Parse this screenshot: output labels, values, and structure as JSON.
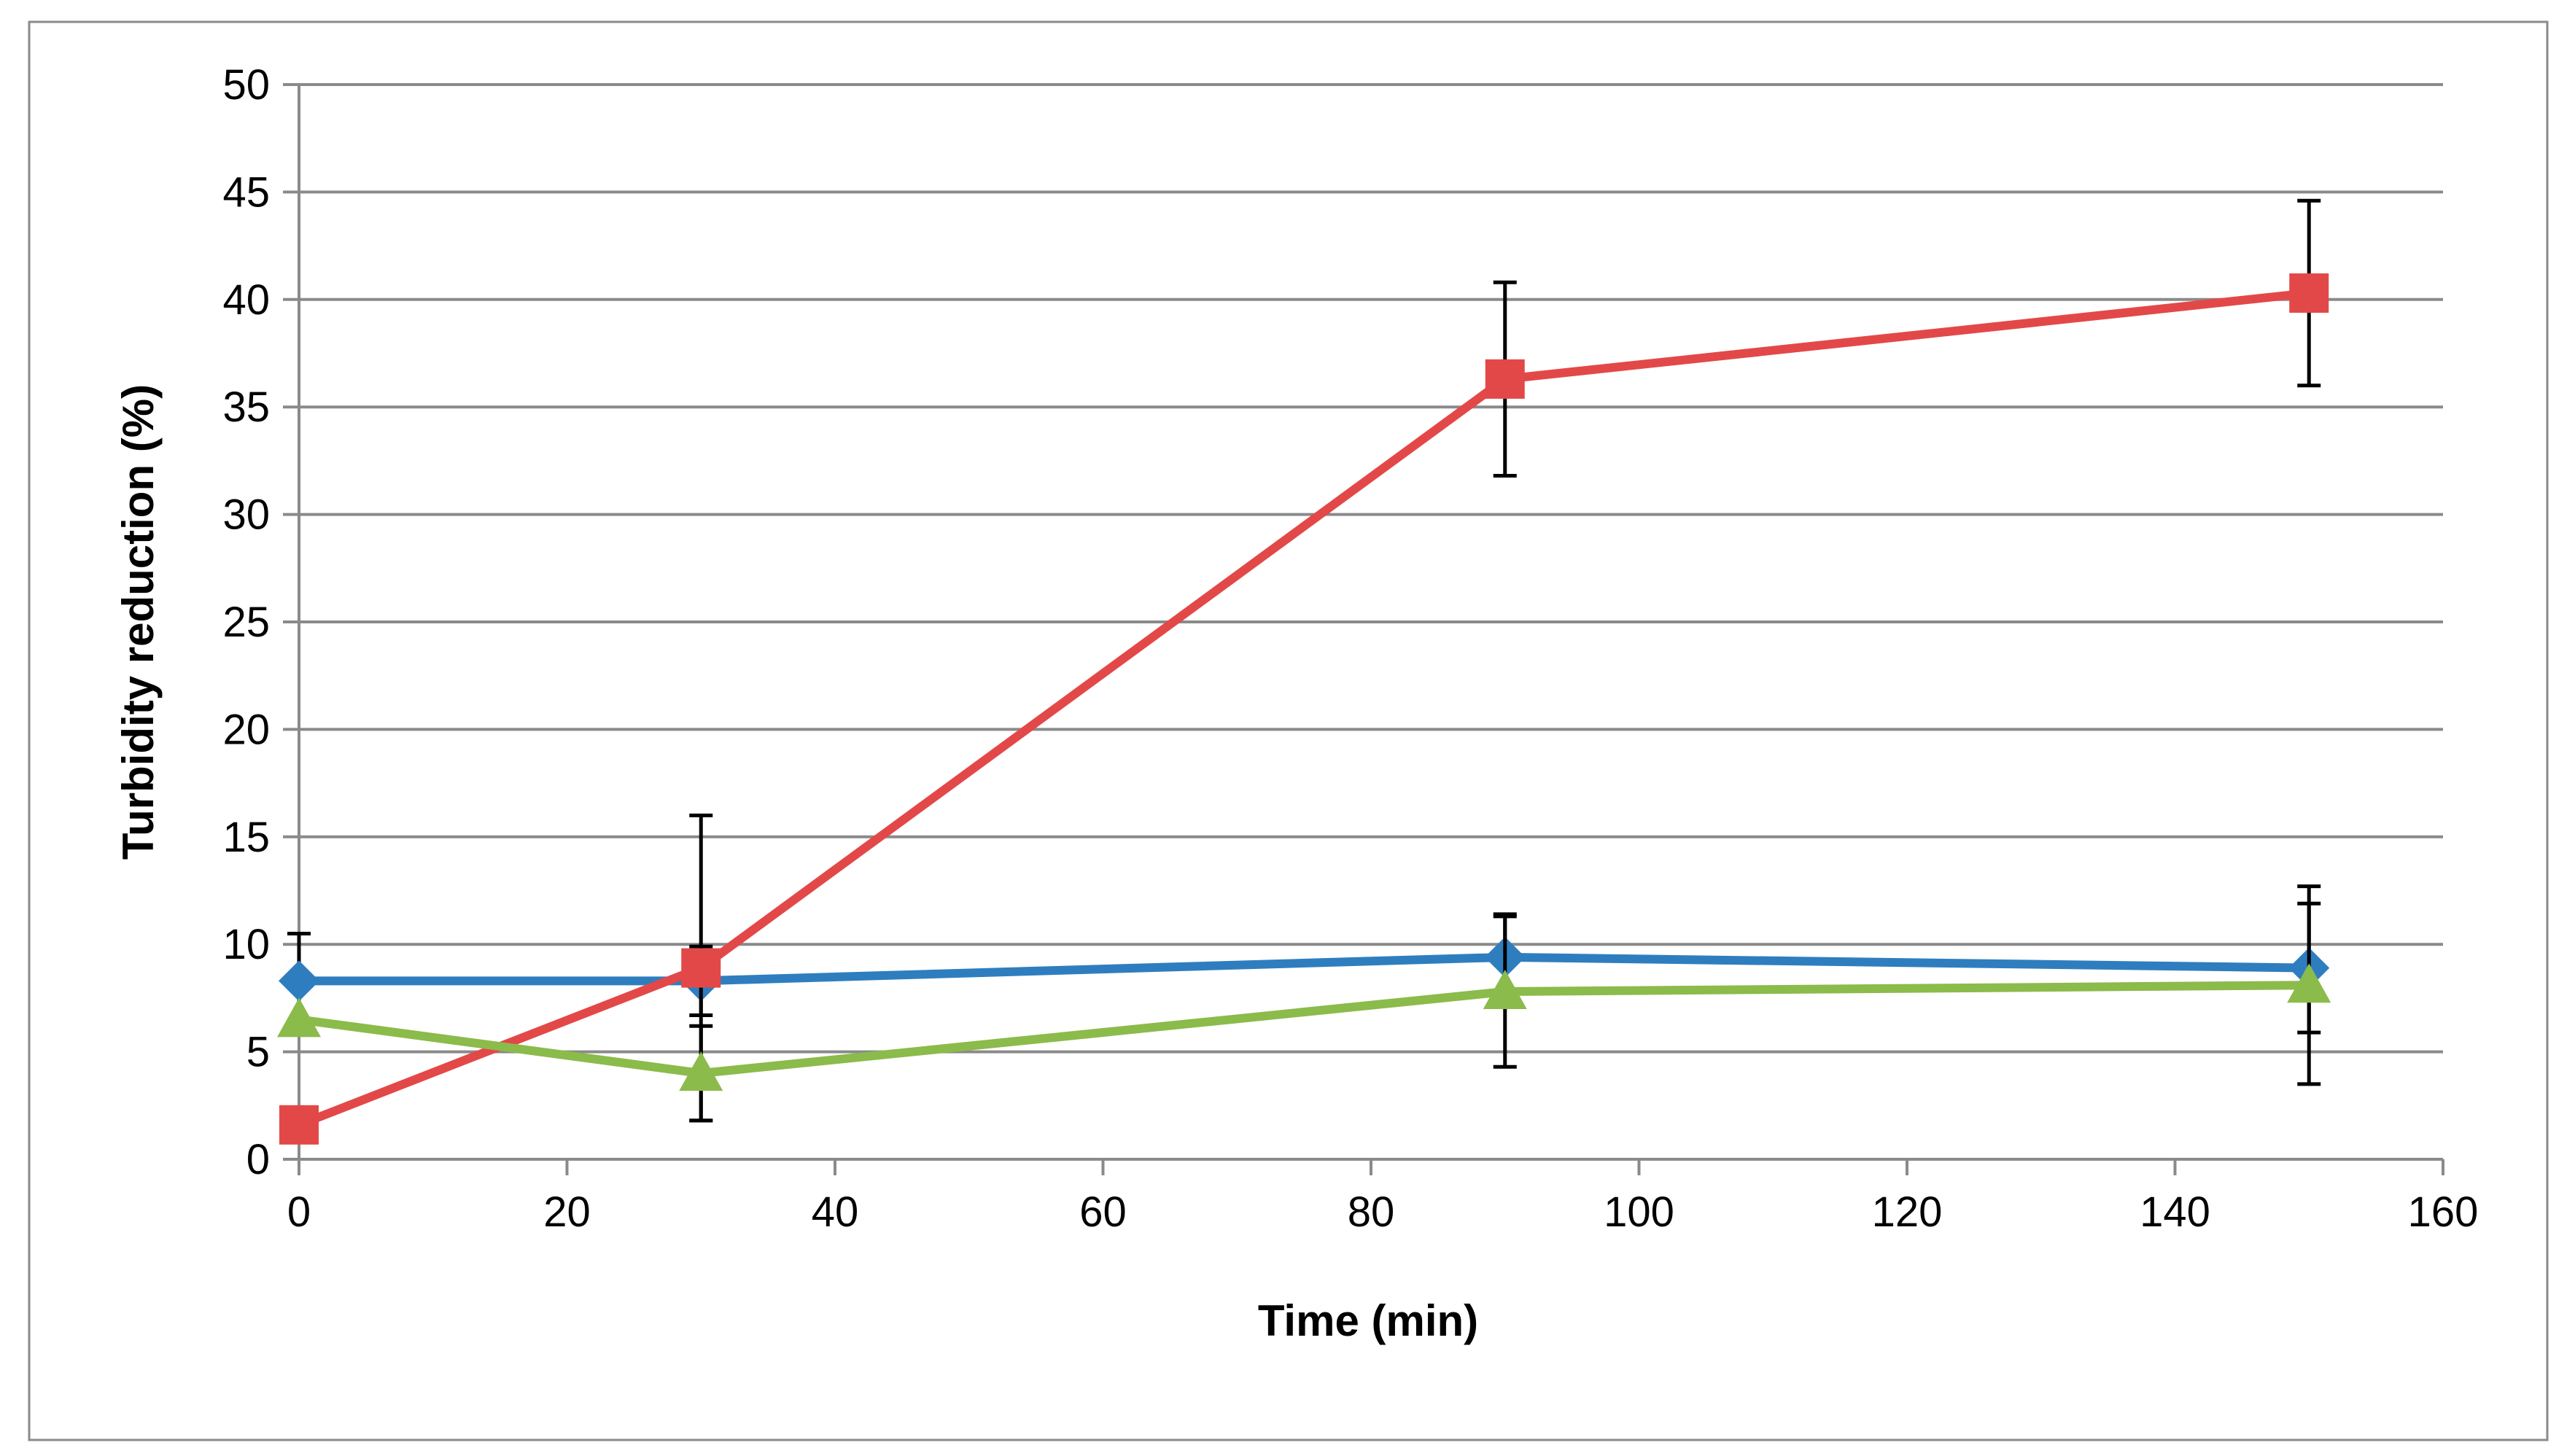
{
  "chart_data": {
    "type": "line",
    "title": "",
    "xlabel": "Time (min)",
    "ylabel": "Turbidity reduction (%)",
    "xlim": [
      0,
      160
    ],
    "ylim": [
      0,
      50
    ],
    "xticks": [
      0,
      20,
      40,
      60,
      80,
      100,
      120,
      140,
      160
    ],
    "yticks": [
      0,
      5,
      10,
      15,
      20,
      25,
      30,
      35,
      40,
      45,
      50
    ],
    "grid": "horizontal",
    "legend": "none",
    "x": [
      0,
      30,
      90,
      150
    ],
    "series": [
      {
        "name": "blue series",
        "color": "#2e7ebf",
        "marker": "diamond",
        "values": [
          8.3,
          8.3,
          9.4,
          8.9
        ],
        "errors": [
          2.2,
          1.6,
          2.0,
          3.0
        ]
      },
      {
        "name": "red series",
        "color": "#e34848",
        "marker": "square",
        "values": [
          1.6,
          8.9,
          36.3,
          40.3
        ],
        "errors": [
          0.0,
          7.1,
          4.5,
          4.3
        ]
      },
      {
        "name": "green series",
        "color": "#8bbb4a",
        "marker": "triangle",
        "values": [
          6.5,
          4.0,
          7.8,
          8.1
        ],
        "errors": [
          0.0,
          2.2,
          3.5,
          4.6
        ]
      }
    ]
  }
}
